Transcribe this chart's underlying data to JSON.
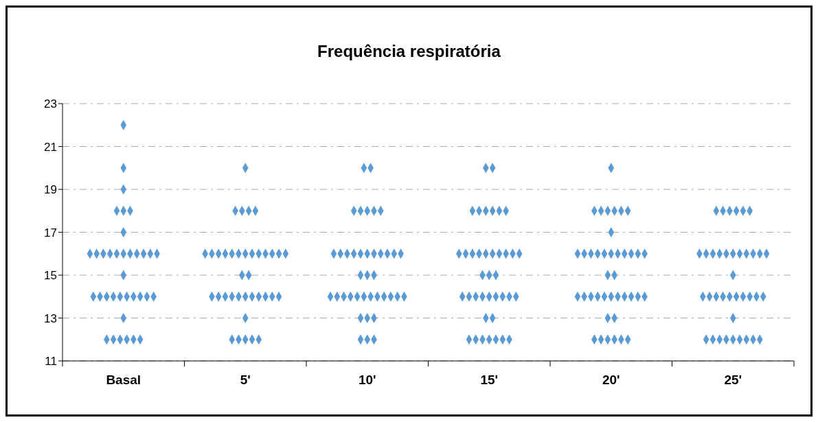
{
  "chart_data": {
    "type": "scatter",
    "title": "Frequência respiratória",
    "marker": "diamond",
    "grid": "y",
    "categories": [
      "Basal",
      "5'",
      "10'",
      "15'",
      "20'",
      "25'"
    ],
    "ylim": [
      11,
      23
    ],
    "yticks": [
      11,
      13,
      15,
      17,
      19,
      21,
      23
    ],
    "series": [
      {
        "color": "#5b9bd5",
        "x": [
          "Basal",
          "Basal",
          "Basal",
          "Basal",
          "Basal",
          "Basal",
          "Basal",
          "Basal",
          "Basal",
          "Basal",
          "Basal",
          "Basal",
          "Basal",
          "Basal",
          "Basal",
          "Basal",
          "Basal",
          "Basal",
          "Basal",
          "Basal",
          "Basal",
          "Basal",
          "Basal",
          "Basal",
          "Basal",
          "Basal",
          "Basal",
          "Basal",
          "Basal",
          "Basal",
          "Basal",
          "Basal",
          "Basal",
          "Basal",
          "Basal",
          "Basal",
          "5'",
          "5'",
          "5'",
          "5'",
          "5'",
          "5'",
          "5'",
          "5'",
          "5'",
          "5'",
          "5'",
          "5'",
          "5'",
          "5'",
          "5'",
          "5'",
          "5'",
          "5'",
          "5'",
          "5'",
          "5'",
          "5'",
          "5'",
          "5'",
          "5'",
          "5'",
          "5'",
          "5'",
          "5'",
          "5'",
          "5'",
          "5'",
          "5'",
          "5'",
          "5'",
          "5'",
          "5'",
          "10'",
          "10'",
          "10'",
          "10'",
          "10'",
          "10'",
          "10'",
          "10'",
          "10'",
          "10'",
          "10'",
          "10'",
          "10'",
          "10'",
          "10'",
          "10'",
          "10'",
          "10'",
          "10'",
          "10'",
          "10'",
          "10'",
          "10'",
          "10'",
          "10'",
          "10'",
          "10'",
          "10'",
          "10'",
          "10'",
          "10'",
          "10'",
          "10'",
          "10'",
          "10'",
          "10'",
          "10'",
          "10'",
          "10'",
          "15'",
          "15'",
          "15'",
          "15'",
          "15'",
          "15'",
          "15'",
          "15'",
          "15'",
          "15'",
          "15'",
          "15'",
          "15'",
          "15'",
          "15'",
          "15'",
          "15'",
          "15'",
          "15'",
          "15'",
          "15'",
          "15'",
          "15'",
          "15'",
          "15'",
          "15'",
          "15'",
          "15'",
          "15'",
          "15'",
          "15'",
          "15'",
          "15'",
          "15'",
          "15'",
          "15'",
          "15'",
          "15'",
          "15'",
          "20'",
          "20'",
          "20'",
          "20'",
          "20'",
          "20'",
          "20'",
          "20'",
          "20'",
          "20'",
          "20'",
          "20'",
          "20'",
          "20'",
          "20'",
          "20'",
          "20'",
          "20'",
          "20'",
          "20'",
          "20'",
          "20'",
          "20'",
          "20'",
          "20'",
          "20'",
          "20'",
          "20'",
          "20'",
          "20'",
          "20'",
          "20'",
          "20'",
          "20'",
          "20'",
          "20'",
          "20'",
          "20'",
          "20'",
          "20'",
          "25'",
          "25'",
          "25'",
          "25'",
          "25'",
          "25'",
          "25'",
          "25'",
          "25'",
          "25'",
          "25'",
          "25'",
          "25'",
          "25'",
          "25'",
          "25'",
          "25'",
          "25'",
          "25'",
          "25'",
          "25'",
          "25'",
          "25'",
          "25'",
          "25'",
          "25'",
          "25'",
          "25'",
          "25'",
          "25'",
          "25'",
          "25'",
          "25'",
          "25'",
          "25'",
          "25'",
          "25'",
          "25'"
        ],
        "values": [
          22,
          20,
          19,
          18,
          18,
          18,
          17,
          16,
          16,
          16,
          16,
          16,
          16,
          16,
          16,
          16,
          16,
          16,
          15,
          14,
          14,
          14,
          14,
          14,
          14,
          14,
          14,
          14,
          14,
          13,
          12,
          12,
          12,
          12,
          12,
          12,
          20,
          18,
          18,
          18,
          18,
          16,
          16,
          16,
          16,
          16,
          16,
          16,
          16,
          16,
          16,
          16,
          16,
          16,
          15,
          15,
          14,
          14,
          14,
          14,
          14,
          14,
          14,
          14,
          14,
          14,
          14,
          13,
          12,
          12,
          12,
          12,
          12,
          20,
          20,
          18,
          18,
          18,
          18,
          18,
          16,
          16,
          16,
          16,
          16,
          16,
          16,
          16,
          16,
          16,
          16,
          15,
          15,
          15,
          14,
          14,
          14,
          14,
          14,
          14,
          14,
          14,
          14,
          14,
          14,
          14,
          13,
          13,
          13,
          12,
          12,
          12,
          20,
          20,
          18,
          18,
          18,
          18,
          18,
          18,
          16,
          16,
          16,
          16,
          16,
          16,
          16,
          16,
          16,
          16,
          15,
          15,
          15,
          14,
          14,
          14,
          14,
          14,
          14,
          14,
          14,
          14,
          13,
          13,
          12,
          12,
          12,
          12,
          12,
          12,
          12,
          20,
          18,
          18,
          18,
          18,
          18,
          18,
          17,
          16,
          16,
          16,
          16,
          16,
          16,
          16,
          16,
          16,
          16,
          16,
          15,
          15,
          14,
          14,
          14,
          14,
          14,
          14,
          14,
          14,
          14,
          14,
          14,
          13,
          13,
          12,
          12,
          12,
          12,
          12,
          12,
          18,
          18,
          18,
          18,
          18,
          18,
          16,
          16,
          16,
          16,
          16,
          16,
          16,
          16,
          16,
          16,
          16,
          15,
          14,
          14,
          14,
          14,
          14,
          14,
          14,
          14,
          14,
          14,
          13,
          12,
          12,
          12,
          12,
          12,
          12,
          12,
          12,
          12
        ]
      }
    ]
  }
}
